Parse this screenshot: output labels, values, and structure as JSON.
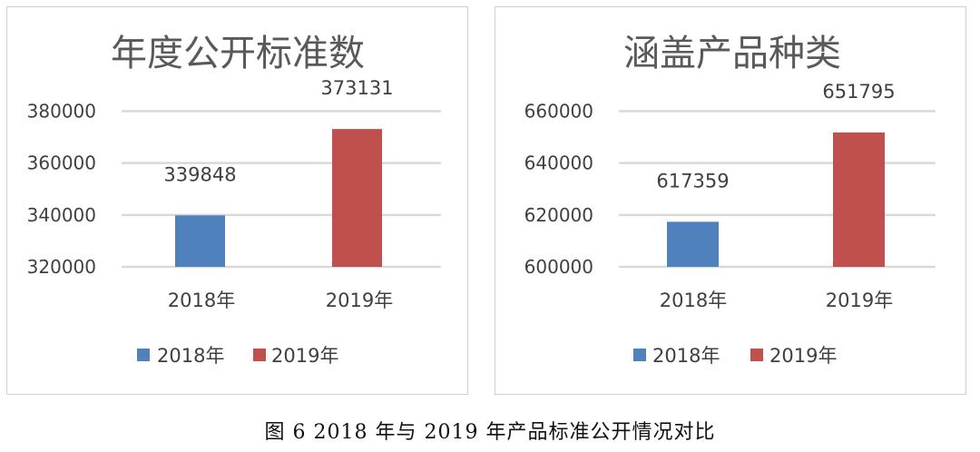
{
  "chart_data": [
    {
      "type": "bar",
      "title": "年度公开标准数",
      "categories": [
        "2018年",
        "2019年"
      ],
      "series": [
        {
          "name": "2018年",
          "values": [
            339848,
            null
          ],
          "color": "#4f81bd"
        },
        {
          "name": "2019年",
          "values": [
            null,
            373131
          ],
          "color": "#c0504d"
        }
      ],
      "data_labels": [
        "339848",
        "373131"
      ],
      "yticks": [
        "320000",
        "340000",
        "360000",
        "380000"
      ],
      "ylim": [
        320000,
        380000
      ],
      "grid": true,
      "legend": "bottom"
    },
    {
      "type": "bar",
      "title": "涵盖产品种类",
      "categories": [
        "2018年",
        "2019年"
      ],
      "series": [
        {
          "name": "2018年",
          "values": [
            617359,
            null
          ],
          "color": "#4f81bd"
        },
        {
          "name": "2019年",
          "values": [
            null,
            651795
          ],
          "color": "#c0504d"
        }
      ],
      "data_labels": [
        "617359",
        "651795"
      ],
      "yticks": [
        "600000",
        "620000",
        "640000",
        "660000"
      ],
      "ylim": [
        600000,
        660000
      ],
      "grid": true,
      "legend": "bottom"
    }
  ],
  "caption": "图 6   2018 年与 2019 年产品标准公开情况对比"
}
